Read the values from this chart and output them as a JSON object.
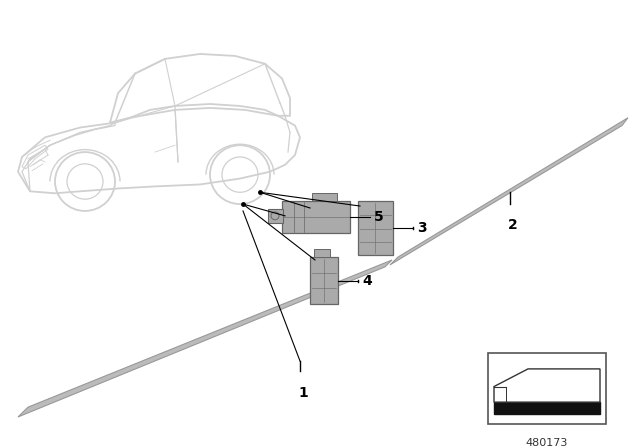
{
  "background_color": "#ffffff",
  "fig_width": 6.4,
  "fig_height": 4.48,
  "dpi": 100,
  "part_number": "480173",
  "car_color": "#d0d0d0",
  "strip_color": "#bbbbbb",
  "strip_edge_color": "#999999",
  "part_color": "#aaaaaa",
  "part_edge_color": "#666666",
  "line_color": "#000000",
  "label_fontsize": 10,
  "pn_fontsize": 8
}
